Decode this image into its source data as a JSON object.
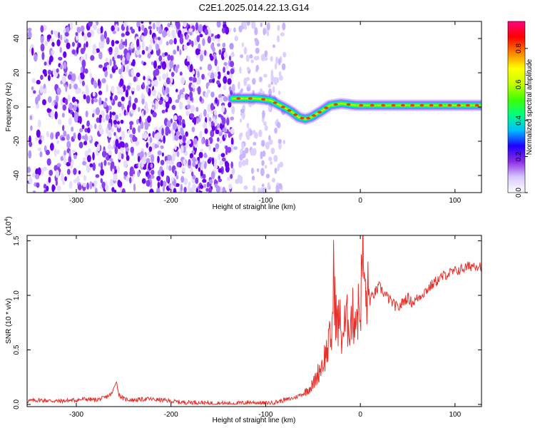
{
  "title": "C2E1.2025.014.22.13.G14",
  "chart_data": [
    {
      "type": "heatmap",
      "xlabel": "Height of straight line (km)",
      "ylabel": "Frequency (Hz)",
      "xlim": [
        -352,
        128
      ],
      "ylim": [
        -50,
        50
      ],
      "x_ticks": [
        -300,
        -200,
        -100,
        0,
        100
      ],
      "x_tick_labels": [
        "-300",
        "-200",
        "-100",
        "0",
        "100"
      ],
      "y_ticks": [
        -40,
        -20,
        0,
        20,
        40
      ],
      "y_tick_labels": [
        "-40",
        "-20",
        "0",
        "20",
        "40"
      ],
      "colorbar": {
        "label": "Normalized spectral amplitude",
        "range": [
          0,
          0.95
        ],
        "ticks": [
          0.0,
          0.2,
          0.4,
          0.6,
          0.8
        ],
        "tick_labels": [
          "0.0",
          "0.2",
          "0.4",
          "0.6",
          "0.8"
        ],
        "colors": [
          "#ffffff",
          "#d8c8ff",
          "#8a2be2",
          "#1e00ff",
          "#00bfff",
          "#00ff80",
          "#40ff00",
          "#c8ff00",
          "#ffff00",
          "#ff8000",
          "#ff0000",
          "#ff0080"
        ]
      },
      "signal_track": [
        {
          "x": -135,
          "y": 5
        },
        {
          "x": -110,
          "y": 5
        },
        {
          "x": -95,
          "y": 4
        },
        {
          "x": -85,
          "y": 1
        },
        {
          "x": -78,
          "y": -1
        },
        {
          "x": -72,
          "y": -3
        },
        {
          "x": -65,
          "y": -6
        },
        {
          "x": -58,
          "y": -7
        },
        {
          "x": -52,
          "y": -6
        },
        {
          "x": -46,
          "y": -4
        },
        {
          "x": -40,
          "y": -2
        },
        {
          "x": -32,
          "y": 1
        },
        {
          "x": -20,
          "y": 2
        },
        {
          "x": -5,
          "y": 1
        },
        {
          "x": 30,
          "y": 1
        },
        {
          "x": 80,
          "y": 1
        },
        {
          "x": 128,
          "y": 1
        }
      ],
      "noise_region_x": [
        -352,
        -80
      ]
    },
    {
      "type": "line",
      "xlabel": "Height of straight line (km)",
      "ylabel": "SNR (10 * v/v)",
      "y_scale_label": "(x10",
      "y_scale_exp": "4",
      "y_scale_close": ")",
      "xlim": [
        -352,
        128
      ],
      "ylim": [
        -0.02,
        1.55
      ],
      "x_ticks": [
        -300,
        -200,
        -100,
        0,
        100
      ],
      "x_tick_labels": [
        "-300",
        "-200",
        "-100",
        "0",
        "100"
      ],
      "y_ticks": [
        0.0,
        0.5,
        1.0,
        1.5
      ],
      "y_tick_labels": [
        "0.0",
        "0.5",
        "1.0",
        "1.5"
      ],
      "color": "#e8302a",
      "x": [
        -352,
        -340,
        -320,
        -300,
        -290,
        -280,
        -270,
        -262,
        -258,
        -255,
        -250,
        -240,
        -225,
        -210,
        -200,
        -190,
        -175,
        -160,
        -150,
        -130,
        -115,
        -100,
        -90,
        -80,
        -70,
        -60,
        -50,
        -45,
        -40,
        -35,
        -30,
        -28,
        -25,
        -22,
        -20,
        -15,
        -10,
        -5,
        0,
        3,
        5,
        8,
        10,
        15,
        20,
        25,
        30,
        35,
        40,
        45,
        50,
        55,
        60,
        70,
        80,
        90,
        100,
        110,
        120,
        128
      ],
      "y": [
        0.03,
        0.04,
        0.03,
        0.04,
        0.05,
        0.04,
        0.06,
        0.1,
        0.22,
        0.09,
        0.05,
        0.04,
        0.05,
        0.04,
        0.03,
        0.02,
        0.02,
        0.01,
        0.01,
        0.01,
        0.02,
        0.01,
        0.02,
        0.04,
        0.06,
        0.1,
        0.18,
        0.28,
        0.38,
        0.5,
        0.65,
        1.22,
        0.7,
        0.8,
        0.62,
        0.75,
        0.78,
        0.83,
        0.88,
        1.45,
        0.95,
        1.0,
        0.95,
        1.02,
        1.08,
        1.02,
        0.97,
        0.92,
        0.88,
        0.94,
        0.98,
        0.93,
        0.97,
        1.05,
        1.13,
        1.19,
        1.22,
        1.25,
        1.28,
        1.27
      ]
    }
  ]
}
